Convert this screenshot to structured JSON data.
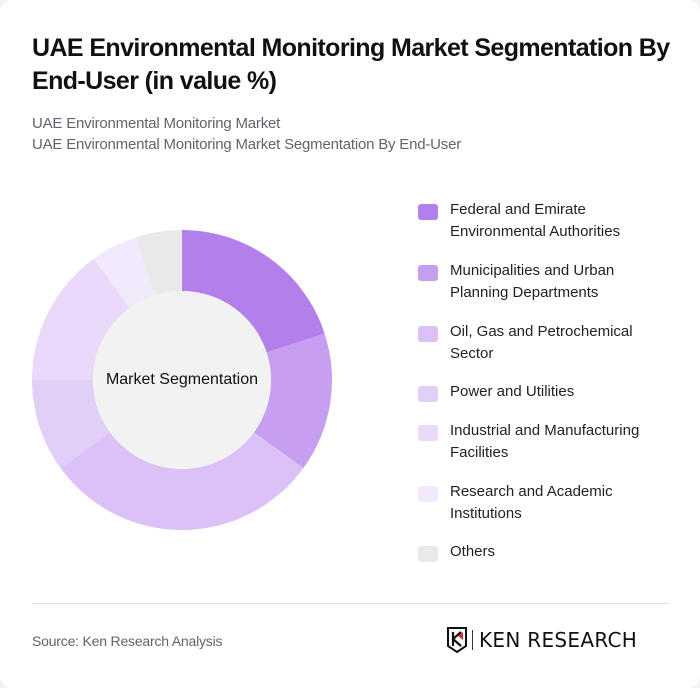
{
  "header": {
    "title": "UAE Environmental Monitoring Market Segmentation By End-User (in value %)",
    "subtitle_line1": "UAE Environmental Monitoring Market",
    "subtitle_line2": "UAE Environmental Monitoring Market Segmentation By End-User"
  },
  "chart": {
    "center_label": "Market Segmentation"
  },
  "chart_data": {
    "type": "pie",
    "variant": "donut",
    "title": "UAE Environmental Monitoring Market Segmentation By End-User (in value %)",
    "center_label": "Market Segmentation",
    "legend_position": "right",
    "categories": [
      "Federal and Emirate Environmental Authorities",
      "Municipalities and Urban Planning Departments",
      "Oil, Gas and Petrochemical Sector",
      "Power and Utilities",
      "Industrial and Manufacturing Facilities",
      "Research and Academic Institutions",
      "Others"
    ],
    "values": [
      20,
      15,
      30,
      10,
      15,
      5,
      5
    ],
    "colors": [
      "#b37feb",
      "#c69ff0",
      "#dbc1f7",
      "#e2cff8",
      "#ead9f9",
      "#f2eafc",
      "#e9e9e9"
    ]
  },
  "legend": {
    "items": [
      {
        "label": "Federal and Emirate Environmental Authorities",
        "line1": "Federal and Emirate",
        "line2": "Environmental Authorities",
        "color": "#b37feb"
      },
      {
        "label": "Municipalities and Urban Planning Departments",
        "line1": "Municipalities and Urban",
        "line2": "Planning Departments",
        "color": "#c69ff0"
      },
      {
        "label": "Oil, Gas and Petrochemical Sector",
        "line1": "Oil, Gas and Petrochemical",
        "line2": "Sector",
        "color": "#dbc1f7"
      },
      {
        "label": "Power and Utilities",
        "line1": "Power and Utilities",
        "line2": "",
        "color": "#e2cff8"
      },
      {
        "label": "Industrial and Manufacturing Facilities",
        "line1": "Industrial and Manufacturing",
        "line2": "Facilities",
        "color": "#ead9f9"
      },
      {
        "label": "Research and Academic Institutions",
        "line1": "Research and Academic",
        "line2": "Institutions",
        "color": "#f2eafc"
      },
      {
        "label": "Others",
        "line1": "Others",
        "line2": "",
        "color": "#e9e9e9"
      }
    ]
  },
  "footer": {
    "source": "Source: Ken Research Analysis",
    "logo_text": "KEN RESEARCH"
  }
}
